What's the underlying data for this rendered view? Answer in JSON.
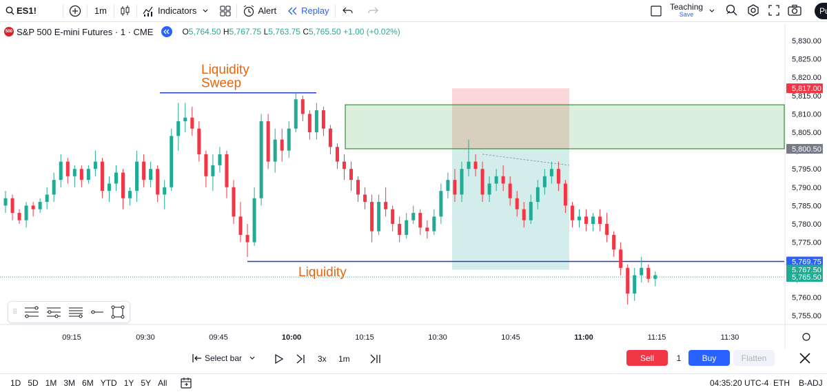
{
  "toolbar": {
    "symbol": "ES1!",
    "interval": "1m",
    "indicators_label": "Indicators",
    "alert_label": "Alert",
    "replay_label": "Replay",
    "layout_name": "Teaching",
    "layout_save": "Save",
    "profile_initials": "Pu"
  },
  "header": {
    "title": "S&P 500 E-mini Futures · 1 · CME",
    "logo_text": "500",
    "o_label": "O",
    "o": "5,764.50",
    "h_label": "H",
    "h": "5,767.75",
    "l_label": "L",
    "l": "5,763.75",
    "c_label": "C",
    "c": "5,765.50",
    "change": "+1.00 (+0.02%)"
  },
  "chart_data": {
    "type": "candlestick",
    "y_axis_ticks": [
      "5,830.00",
      "5,825.00",
      "5,820.00",
      "5,815.00",
      "5,810.00",
      "5,805.00",
      "5,800.00",
      "5,795.00",
      "5,790.00",
      "5,785.00",
      "5,780.00",
      "5,775.00",
      "5,770.00",
      "5,765.00",
      "5,760.00",
      "5,755.00"
    ],
    "y_tick_values": [
      5830,
      5825,
      5820,
      5815,
      5810,
      5805,
      5800,
      5795,
      5790,
      5785,
      5780,
      5775,
      5770,
      5765,
      5760,
      5755
    ],
    "x_axis_ticks": [
      "09:15",
      "09:30",
      "09:45",
      "10:00",
      "10:15",
      "10:30",
      "10:45",
      "11:00",
      "11:15",
      "11:30"
    ],
    "bold_ticks": [
      "10:00",
      "11:00"
    ],
    "price_labels": [
      {
        "text": "5,817.00",
        "value": 5817.0,
        "color": "#f23645"
      },
      {
        "text": "5,800.50",
        "value": 5800.5,
        "color": "#787b86"
      },
      {
        "text": "5,769.75",
        "value": 5769.75,
        "color": "#2962ff"
      },
      {
        "text": "5,767.50",
        "value": 5767.5,
        "color": "#22ab94"
      },
      {
        "text": "5,765.50",
        "value": 5765.5,
        "color": "#22ab94"
      }
    ],
    "annotations": {
      "sweep_text_1": "Liquidity",
      "sweep_text_2": "Sweep",
      "liquidity_text": "Liquidity",
      "text_color": "#e8650c"
    },
    "sweep_level": 5815.75,
    "liquidity_level": 5769.75,
    "current_price": 5765.5,
    "zones": {
      "supply_top": 5812.5,
      "supply_bottom": 5800.5,
      "stop_top": 5817.0,
      "target_bottom": 5767.5
    },
    "candles": [
      [
        5785,
        5789,
        5783,
        5787
      ],
      [
        5787,
        5788,
        5781,
        5783
      ],
      [
        5783,
        5784,
        5780,
        5781
      ],
      [
        5781,
        5786,
        5779,
        5785
      ],
      [
        5785,
        5786,
        5782,
        5784
      ],
      [
        5784,
        5787,
        5783,
        5786
      ],
      [
        5786,
        5790,
        5784,
        5788
      ],
      [
        5788,
        5794,
        5786,
        5792
      ],
      [
        5792,
        5799,
        5790,
        5797
      ],
      [
        5797,
        5798,
        5791,
        5793
      ],
      [
        5793,
        5796,
        5790,
        5795
      ],
      [
        5795,
        5796,
        5790,
        5792
      ],
      [
        5792,
        5796,
        5791,
        5795
      ],
      [
        5795,
        5800,
        5793,
        5797
      ],
      [
        5797,
        5798,
        5787,
        5789
      ],
      [
        5789,
        5793,
        5786,
        5791
      ],
      [
        5791,
        5796,
        5789,
        5794
      ],
      [
        5794,
        5795,
        5784,
        5787
      ],
      [
        5787,
        5790,
        5785,
        5789
      ],
      [
        5789,
        5800,
        5786,
        5797
      ],
      [
        5797,
        5799,
        5790,
        5792
      ],
      [
        5792,
        5797,
        5790,
        5795
      ],
      [
        5795,
        5796,
        5786,
        5788
      ],
      [
        5788,
        5792,
        5784,
        5790
      ],
      [
        5790,
        5806,
        5789,
        5804
      ],
      [
        5804,
        5813,
        5800,
        5808
      ],
      [
        5808,
        5813,
        5805,
        5809
      ],
      [
        5809,
        5812,
        5804,
        5806
      ],
      [
        5806,
        5808,
        5797,
        5799
      ],
      [
        5799,
        5800,
        5790,
        5793
      ],
      [
        5793,
        5799,
        5789,
        5796
      ],
      [
        5796,
        5801,
        5794,
        5799
      ],
      [
        5799,
        5800,
        5787,
        5790
      ],
      [
        5790,
        5792,
        5780,
        5782
      ],
      [
        5782,
        5786,
        5775,
        5777
      ],
      [
        5777,
        5780,
        5771,
        5775
      ],
      [
        5775,
        5790,
        5774,
        5787
      ],
      [
        5787,
        5810,
        5785,
        5808
      ],
      [
        5808,
        5810,
        5795,
        5797
      ],
      [
        5797,
        5806,
        5794,
        5803
      ],
      [
        5803,
        5806,
        5797,
        5800
      ],
      [
        5800,
        5808,
        5798,
        5806
      ],
      [
        5806,
        5816,
        5805,
        5814
      ],
      [
        5814,
        5815,
        5808,
        5810
      ],
      [
        5810,
        5811,
        5803,
        5805
      ],
      [
        5805,
        5813,
        5803,
        5811
      ],
      [
        5811,
        5812,
        5804,
        5806
      ],
      [
        5806,
        5807,
        5799,
        5801
      ],
      [
        5801,
        5802,
        5795,
        5797
      ],
      [
        5797,
        5799,
        5792,
        5795
      ],
      [
        5795,
        5797,
        5789,
        5792
      ],
      [
        5792,
        5793,
        5786,
        5788
      ],
      [
        5788,
        5790,
        5784,
        5786
      ],
      [
        5786,
        5788,
        5775,
        5778
      ],
      [
        5778,
        5788,
        5777,
        5786
      ],
      [
        5786,
        5790,
        5782,
        5784
      ],
      [
        5784,
        5785,
        5778,
        5780
      ],
      [
        5780,
        5782,
        5775,
        5777
      ],
      [
        5777,
        5783,
        5776,
        5781
      ],
      [
        5781,
        5785,
        5780,
        5783
      ],
      [
        5783,
        5784,
        5777,
        5779
      ],
      [
        5779,
        5781,
        5776,
        5778
      ],
      [
        5778,
        5784,
        5777,
        5782
      ],
      [
        5782,
        5791,
        5780,
        5789
      ],
      [
        5789,
        5794,
        5787,
        5792
      ],
      [
        5792,
        5795,
        5786,
        5788
      ],
      [
        5788,
        5797,
        5786,
        5795
      ],
      [
        5795,
        5803,
        5793,
        5797
      ],
      [
        5797,
        5799,
        5793,
        5795
      ],
      [
        5795,
        5797,
        5786,
        5788
      ],
      [
        5788,
        5793,
        5786,
        5791
      ],
      [
        5791,
        5795,
        5789,
        5793
      ],
      [
        5793,
        5796,
        5789,
        5791
      ],
      [
        5791,
        5793,
        5785,
        5787
      ],
      [
        5787,
        5789,
        5782,
        5784
      ],
      [
        5784,
        5786,
        5779,
        5781
      ],
      [
        5781,
        5788,
        5780,
        5786
      ],
      [
        5786,
        5792,
        5784,
        5790
      ],
      [
        5790,
        5795,
        5788,
        5793
      ],
      [
        5793,
        5797,
        5791,
        5795
      ],
      [
        5795,
        5797,
        5789,
        5791
      ],
      [
        5791,
        5792,
        5783,
        5785
      ],
      [
        5785,
        5786,
        5779,
        5781
      ],
      [
        5781,
        5784,
        5779,
        5782
      ],
      [
        5782,
        5784,
        5778,
        5780
      ],
      [
        5780,
        5783,
        5778,
        5782
      ],
      [
        5782,
        5784,
        5778,
        5780
      ],
      [
        5780,
        5783,
        5775,
        5777
      ],
      [
        5777,
        5778,
        5771,
        5773
      ],
      [
        5773,
        5775,
        5766,
        5768
      ],
      [
        5768,
        5769,
        5758,
        5761
      ],
      [
        5761,
        5768,
        5759,
        5766
      ],
      [
        5766,
        5771,
        5764,
        5768
      ],
      [
        5768,
        5769,
        5764,
        5765
      ],
      [
        5765,
        5767,
        5763,
        5766
      ]
    ]
  },
  "drawtools": {
    "grip": "⠿"
  },
  "replay": {
    "select_bar": "Select bar",
    "speed": "3x",
    "interval": "1m",
    "sell": "Sell",
    "qty": "1",
    "buy": "Buy",
    "flatten": "Flatten"
  },
  "bottom": {
    "ranges": [
      "1D",
      "5D",
      "1M",
      "3M",
      "6M",
      "YTD",
      "1Y",
      "5Y",
      "All"
    ],
    "time": "04:35:20 UTC-4",
    "session": "ETH",
    "adj": "B-ADJ"
  }
}
